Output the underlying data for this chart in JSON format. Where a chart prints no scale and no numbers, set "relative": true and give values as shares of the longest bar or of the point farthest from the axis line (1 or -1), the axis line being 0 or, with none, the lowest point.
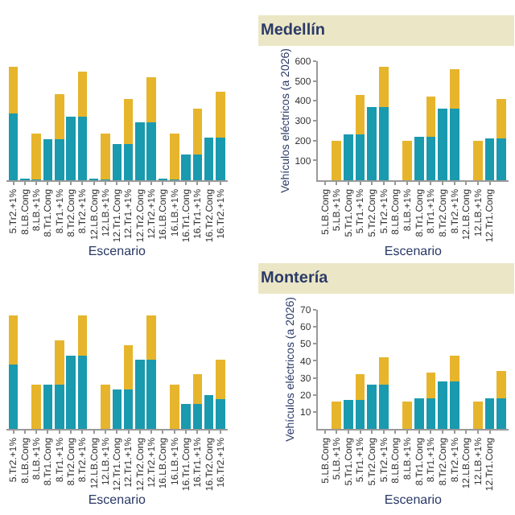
{
  "chart_data": [
    {
      "type": "bar",
      "stacked": true,
      "relative": true,
      "xlabel": "Escenario",
      "categories": [
        "5.Tr2.+1%",
        "8.LB.Cong",
        "8.LB.+1%",
        "8.Tr1.Cong",
        "8.Tr1.+1%",
        "8.Tr2.Cong",
        "8.Tr2.+1%",
        "12.LB.Cong",
        "12.LB.+1%",
        "12.Tr1.Cong",
        "12.Tr1.+1%",
        "12.Tr2.Cong",
        "12.Tr2.+1%",
        "16.LB.Cong",
        "16.LB.+1%",
        "16.Tr1.Cong",
        "16.Tr1.+1%",
        "16.Tr2.Cong",
        "16.Tr2.+1%"
      ],
      "series": [
        {
          "color": "#1a9aae",
          "values": [
            0.59,
            0.01,
            0.01,
            0.36,
            0.36,
            0.56,
            0.56,
            0.01,
            0.01,
            0.32,
            0.32,
            0.51,
            0.51,
            0.01,
            0.01,
            0.23,
            0.23,
            0.38,
            0.38
          ]
        },
        {
          "color": "#e6b52c",
          "values": [
            0.41,
            null,
            0.4,
            null,
            0.4,
            null,
            0.4,
            null,
            0.4,
            null,
            0.4,
            null,
            0.4,
            null,
            0.4,
            null,
            0.4,
            null,
            0.4
          ]
        }
      ]
    },
    {
      "type": "bar",
      "stacked": true,
      "title": "Medellín",
      "xlabel": "Escenario",
      "ylabel": "Vehículos eléctricos (a 2026)",
      "ylim": [
        0,
        600
      ],
      "yticks": [
        100,
        200,
        300,
        400,
        500,
        600
      ],
      "categories": [
        "5.LB.Cong",
        "5.LB.+1%",
        "5.Tr1.Cong",
        "5.Tr1.+1%",
        "5.Tr2.Cong",
        "5.Tr2.+1%",
        "8.LB.Cong",
        "8.LB.+1%",
        "8.Tr1.Cong",
        "8.Tr1.+1%",
        "8.Tr2.Cong",
        "8.Tr2.+1%",
        "12.LB.Cong",
        "12.LB.+1%",
        "12.Tr1.Cong",
        null
      ],
      "series": [
        {
          "color": "#1a9aae",
          "values": [
            null,
            null,
            230,
            230,
            370,
            370,
            null,
            null,
            220,
            220,
            360,
            360,
            null,
            null,
            210,
            210
          ]
        },
        {
          "color": "#e6b52c",
          "values": [
            null,
            200,
            null,
            200,
            null,
            200,
            null,
            200,
            null,
            200,
            null,
            200,
            null,
            200,
            null,
            200
          ]
        }
      ]
    },
    {
      "type": "bar",
      "stacked": true,
      "relative": true,
      "xlabel": "Escenario",
      "categories": [
        "5.Tr2.+1%",
        "8.LB.Cong",
        "8.LB.+1%",
        "8.Tr1.Cong",
        "8.Tr1.+1%",
        "8.Tr2.Cong",
        "8.Tr2.+1%",
        "12.LB.Cong",
        "12.LB.+1%",
        "12.Tr1.Cong",
        "12.Tr1.+1%",
        "12.Tr2.Cong",
        "12.Tr2.+1%",
        "16.LB.Cong",
        "16.LB.+1%",
        "16.Tr1.Cong",
        "16.Tr1.+1%",
        "16.Tr2.Cong",
        "16.Tr2.+1%"
      ],
      "series": [
        {
          "color": "#1a9aae",
          "values": [
            0.57,
            null,
            null,
            0.39,
            0.39,
            0.65,
            0.65,
            null,
            null,
            0.35,
            0.35,
            0.61,
            0.61,
            null,
            null,
            0.22,
            0.22,
            0.3,
            0.26
          ]
        },
        {
          "color": "#e6b52c",
          "values": [
            0.43,
            null,
            0.39,
            null,
            0.39,
            null,
            0.35,
            null,
            0.39,
            null,
            0.39,
            null,
            0.39,
            null,
            0.39,
            null,
            0.26,
            null,
            0.35
          ]
        }
      ]
    },
    {
      "type": "bar",
      "stacked": true,
      "title": "Montería",
      "xlabel": "Escenario",
      "ylabel": "Vehículos eléctricos (a 2026)",
      "ylim": [
        0,
        70
      ],
      "yticks": [
        10,
        20,
        30,
        40,
        50,
        60,
        70
      ],
      "categories": [
        "5.LB.Cong",
        "5.LB.+1%",
        "5.Tr1.Cong",
        "5.Tr1.+1%",
        "5.Tr2.Cong",
        "5.Tr2.+1%",
        "8.LB.Cong",
        "8.LB.+1%",
        "8.Tr1.Cong",
        "8.Tr1.+1%",
        "8.Tr2.Cong",
        "8.Tr2.+1%",
        "12.LB.Cong",
        "12.LB.+1%",
        "12.Tr1.Cong",
        null
      ],
      "series": [
        {
          "color": "#1a9aae",
          "values": [
            null,
            null,
            17,
            17,
            26,
            26,
            null,
            null,
            18,
            18,
            28,
            28,
            null,
            null,
            18,
            18
          ]
        },
        {
          "color": "#e6b52c",
          "values": [
            null,
            16,
            null,
            15,
            null,
            16,
            null,
            16,
            null,
            15,
            null,
            15,
            null,
            16,
            null,
            16
          ]
        }
      ]
    }
  ]
}
